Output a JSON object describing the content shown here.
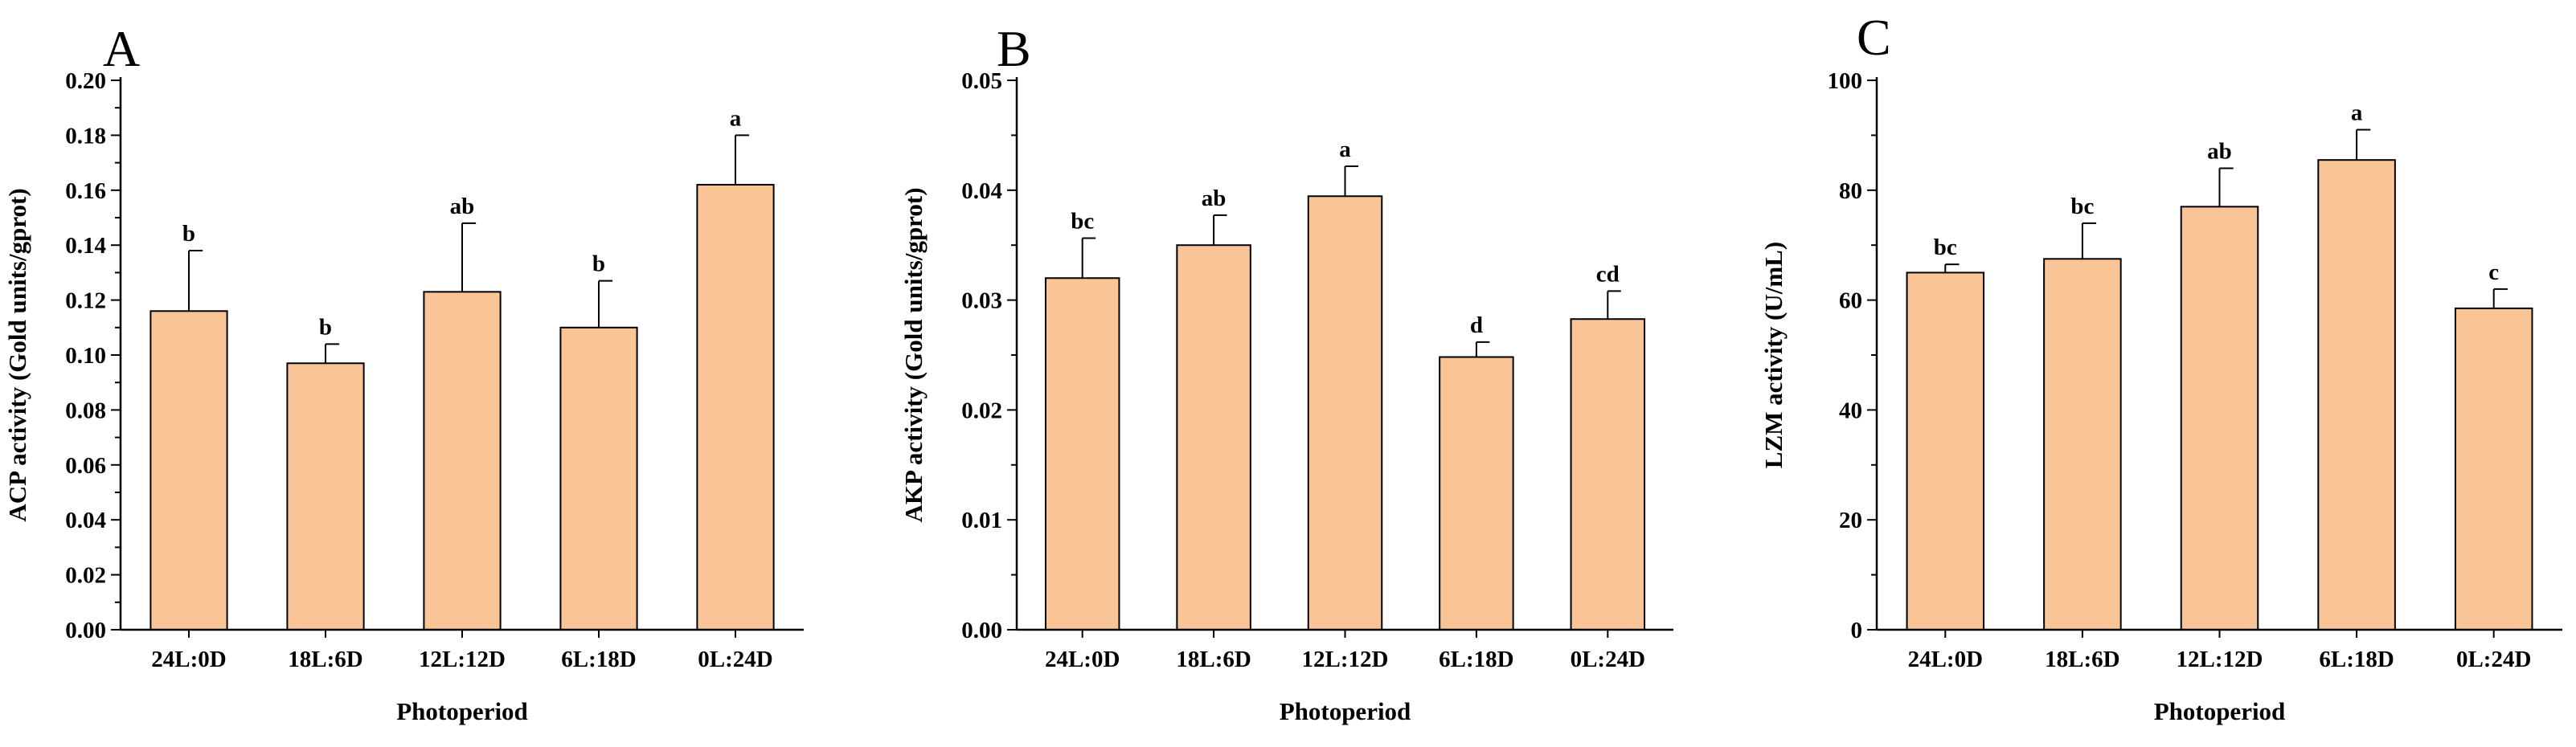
{
  "chart_data": [
    {
      "type": "bar",
      "panel": "A",
      "categories": [
        "24L:0D",
        "18L:6D",
        "12L:12D",
        "6L:18D",
        "0L:24D"
      ],
      "values": [
        0.116,
        0.097,
        0.123,
        0.11,
        0.162
      ],
      "errors": [
        0.022,
        0.007,
        0.025,
        0.017,
        0.018
      ],
      "significance": [
        "b",
        "b",
        "ab",
        "b",
        "a"
      ],
      "xlabel": "Photoperiod",
      "ylabel": "ACP activity (Gold units/gprot)",
      "ylim": [
        0,
        0.2
      ],
      "yticks": [
        "0.00",
        "0.02",
        "0.04",
        "0.06",
        "0.08",
        "0.10",
        "0.12",
        "0.14",
        "0.16",
        "0.18",
        "0.20"
      ],
      "grid": false,
      "bar_color": "#f9c596"
    },
    {
      "type": "bar",
      "panel": "B",
      "categories": [
        "24L:0D",
        "18L:6D",
        "12L:12D",
        "6L:18D",
        "0L:24D"
      ],
      "values": [
        0.0352,
        0.0385,
        0.0434,
        0.0273,
        0.0311
      ],
      "errors": [
        0.004,
        0.003,
        0.003,
        0.0015,
        0.0028
      ],
      "significance": [
        "bc",
        "ab",
        "a",
        "d",
        "cd"
      ],
      "xlabel": "Photoperiod",
      "ylabel": "AKP activity (Gold units/gprot)",
      "ylim": [
        0,
        0.055
      ],
      "yticks": [
        "0.00",
        "0.01",
        "0.02",
        "0.03",
        "0.04",
        "0.05"
      ],
      "grid": false,
      "bar_color": "#f9c596"
    },
    {
      "type": "bar",
      "panel": "C",
      "categories": [
        "24L:0D",
        "18L:6D",
        "12L:12D",
        "6L:18D",
        "0L:24D"
      ],
      "values": [
        65.0,
        67.5,
        77.0,
        85.5,
        58.5
      ],
      "errors": [
        1.5,
        6.5,
        7.0,
        5.5,
        3.5
      ],
      "significance": [
        "bc",
        "bc",
        "ab",
        "a",
        "c"
      ],
      "xlabel": "Photoperiod",
      "ylabel": "LZM activity (U/mL)",
      "ylim": [
        0,
        100
      ],
      "yticks": [
        "0",
        "20",
        "40",
        "60",
        "80",
        "100"
      ],
      "grid": false,
      "bar_color": "#f9c596"
    }
  ]
}
